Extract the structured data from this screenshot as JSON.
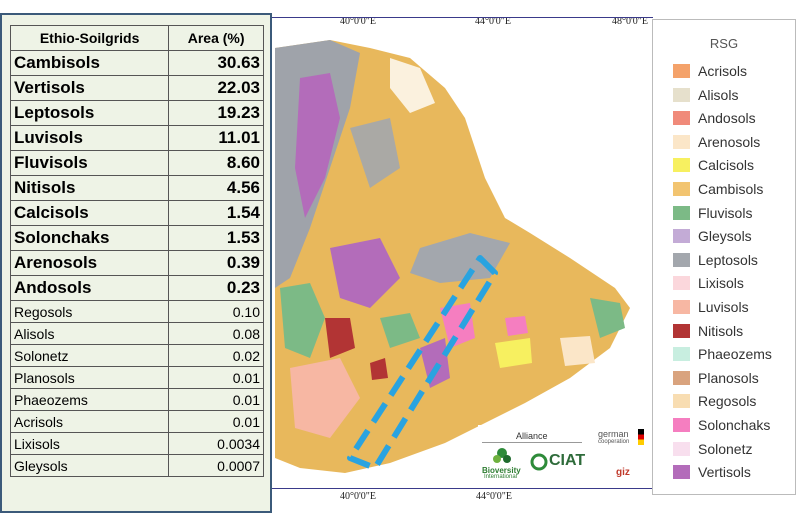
{
  "map": {
    "top_coords": [
      "40°0'0\"E",
      "44°0'0\"E",
      "48°0'0\"E"
    ],
    "bottom_coords": [
      "40°0'0\"E",
      "44°0'0\"E"
    ]
  },
  "table": {
    "headers": [
      "Ethio-Soilgrids",
      "Area (%)"
    ],
    "major_rows": [
      {
        "name": "Cambisols",
        "value": "30.63"
      },
      {
        "name": "Vertisols",
        "value": "22.03"
      },
      {
        "name": "Leptosols",
        "value": "19.23"
      },
      {
        "name": "Luvisols",
        "value": "11.01"
      },
      {
        "name": "Fluvisols",
        "value": "8.60"
      },
      {
        "name": "Nitisols",
        "value": "4.56"
      },
      {
        "name": "Calcisols",
        "value": "1.54"
      },
      {
        "name": "Solonchaks",
        "value": "1.53"
      },
      {
        "name": "Arenosols",
        "value": "0.39"
      },
      {
        "name": "Andosols",
        "value": "0.23"
      }
    ],
    "minor_rows": [
      {
        "name": "Regosols",
        "value": "0.10"
      },
      {
        "name": "Alisols",
        "value": "0.08"
      },
      {
        "name": "Solonetz",
        "value": "0.02"
      },
      {
        "name": "Planosols",
        "value": "0.01"
      },
      {
        "name": "Phaeozems",
        "value": "0.01"
      },
      {
        "name": "Acrisols",
        "value": "0.01"
      },
      {
        "name": "Lixisols",
        "value": "0.0034"
      },
      {
        "name": "Gleysols",
        "value": "0.0007"
      }
    ]
  },
  "legend": {
    "title": "RSG",
    "items": [
      {
        "label": "Acrisols",
        "color": "#f4a26a"
      },
      {
        "label": "Alisols",
        "color": "#e6e0cc"
      },
      {
        "label": "Andosols",
        "color": "#f08a7a"
      },
      {
        "label": "Arenosols",
        "color": "#fbe6c8"
      },
      {
        "label": "Calcisols",
        "color": "#f7f060"
      },
      {
        "label": "Cambisols",
        "color": "#f2c470"
      },
      {
        "label": "Fluvisols",
        "color": "#7cba86"
      },
      {
        "label": "Gleysols",
        "color": "#c3abd6"
      },
      {
        "label": "Leptosols",
        "color": "#a3a7ad"
      },
      {
        "label": "Lixisols",
        "color": "#fbd7dc"
      },
      {
        "label": "Luvisols",
        "color": "#f7b7a3"
      },
      {
        "label": "Nitisols",
        "color": "#b23434"
      },
      {
        "label": "Phaeozems",
        "color": "#c8eee0"
      },
      {
        "label": "Planosols",
        "color": "#d9a37e"
      },
      {
        "label": "Regosols",
        "color": "#f8ddb2"
      },
      {
        "label": "Solonchaks",
        "color": "#f57ec0"
      },
      {
        "label": "Solonetz",
        "color": "#f8dfee"
      },
      {
        "label": "Vertisols",
        "color": "#b36cba"
      }
    ]
  },
  "logos": {
    "alliance": "Alliance",
    "bioversity": "Bioversity",
    "bioversity_sub": "International",
    "ciat": "CIAT",
    "german": "german",
    "cooperation": "cooperation",
    "giz": "giz"
  },
  "colors": {
    "highlight_dash": "#29a3e0",
    "panel_border": "#3b5a7a",
    "panel_bg": "#eef3e6"
  }
}
